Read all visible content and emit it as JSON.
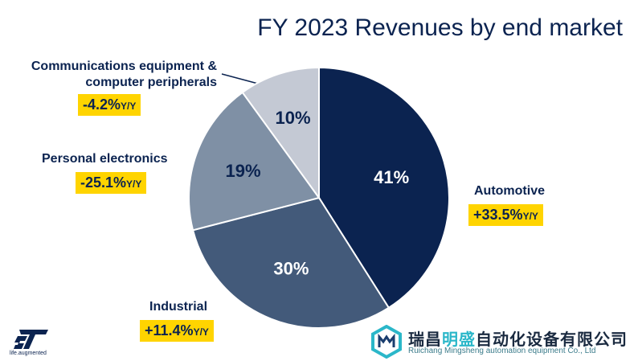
{
  "title": "FY 2023 Revenues by end market",
  "chart_data": {
    "type": "pie",
    "start_angle_deg": 0,
    "direction": "clockwise",
    "slices": [
      {
        "label": "Automotive",
        "value": 41,
        "value_label": "41%",
        "yoy": "+33.5%",
        "color": "#0b2350",
        "label_color": "#ffffff"
      },
      {
        "label": "Industrial",
        "value": 30,
        "value_label": "30%",
        "yoy": "+11.4%",
        "color": "#435a7a",
        "label_color": "#ffffff"
      },
      {
        "label": "Personal electronics",
        "value": 19,
        "value_label": "19%",
        "yoy": "-25.1%",
        "color": "#7f90a5",
        "label_color": "#0b2350"
      },
      {
        "label": "Communications equipment & computer peripherals",
        "value": 10,
        "value_label": "10%",
        "yoy": "-4.2%",
        "color": "#c4c9d4",
        "label_color": "#0b2350"
      }
    ]
  },
  "callouts": {
    "comm": {
      "line1": "Communications equipment &",
      "line2": "computer peripherals"
    },
    "yy_suffix": "Y/Y"
  },
  "logo": {
    "tagline": "life.augmented"
  },
  "watermark": {
    "title_part1": "瑞昌",
    "title_highlight": "明盛",
    "title_part2": "自动化设备有限公司",
    "subtitle": "Ruichang Mingsheng automation equipment Co., Ltd"
  },
  "colors": {
    "accent": "#ffd400",
    "text": "#0b2350"
  }
}
